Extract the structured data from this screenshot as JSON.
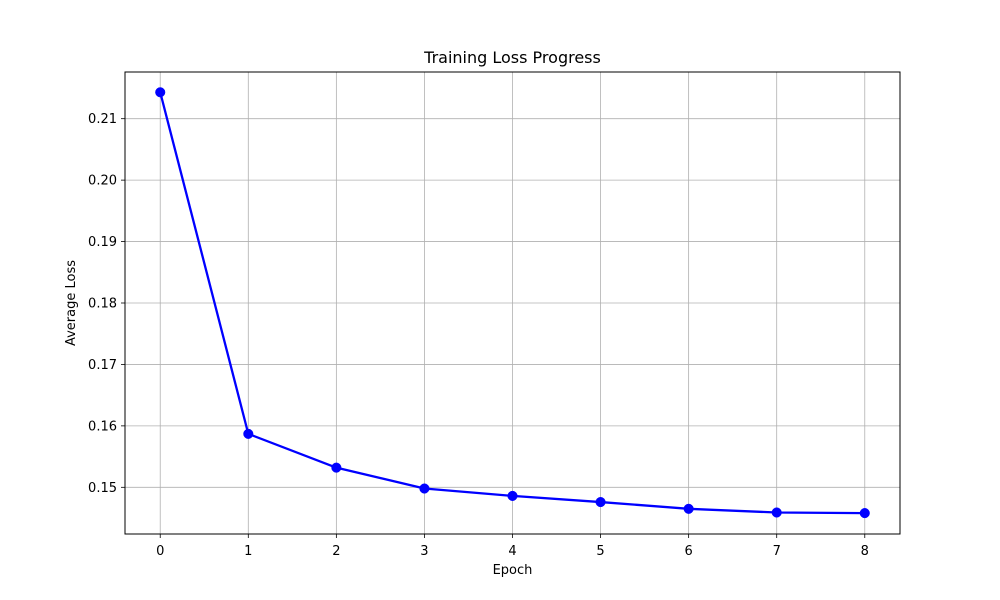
{
  "chart_data": {
    "type": "line",
    "title": "Training Loss Progress",
    "xlabel": "Epoch",
    "ylabel": "Average Loss",
    "x": [
      0,
      1,
      2,
      3,
      4,
      5,
      6,
      7,
      8
    ],
    "xticks": [
      "0",
      "1",
      "2",
      "3",
      "4",
      "5",
      "6",
      "7",
      "8"
    ],
    "yticks": [
      "0.15",
      "0.16",
      "0.17",
      "0.18",
      "0.19",
      "0.20",
      "0.21"
    ],
    "xlim": [
      -0.4,
      8.4
    ],
    "ylim": [
      0.1424,
      0.2176
    ],
    "grid": true,
    "series": [
      {
        "values": [
          0.2143,
          0.1587,
          0.1532,
          0.1498,
          0.1486,
          0.1476,
          0.1465,
          0.1459,
          0.1458
        ],
        "color": "#0000ff",
        "marker": "circle"
      }
    ]
  }
}
